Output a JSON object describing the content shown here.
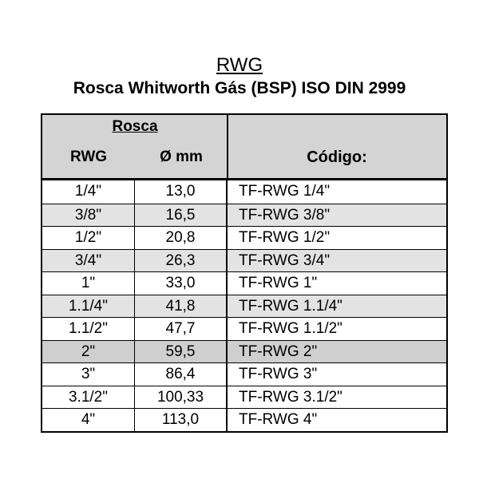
{
  "title": "RWG",
  "subtitle": "Rosca Whitworth Gás (BSP)  ISO DIN 2999",
  "table": {
    "group_header": "Rosca",
    "headers": {
      "rwg": "RWG",
      "mm": "Ø mm",
      "code": "Código:"
    },
    "rows": [
      {
        "rwg": "1/4\"",
        "mm": "13,0",
        "code": "TF-RWG 1/4\"",
        "shade": "none"
      },
      {
        "rwg": "3/8\"",
        "mm": "16,5",
        "code": "TF-RWG 3/8\"",
        "shade": "light"
      },
      {
        "rwg": "1/2\"",
        "mm": "20,8",
        "code": "TF-RWG 1/2\"",
        "shade": "none"
      },
      {
        "rwg": "3/4\"",
        "mm": "26,3",
        "code": "TF-RWG 3/4\"",
        "shade": "light"
      },
      {
        "rwg": "1\"",
        "mm": "33,0",
        "code": "TF-RWG 1\"",
        "shade": "none"
      },
      {
        "rwg": "1.1/4\"",
        "mm": "41,8",
        "code": "TF-RWG 1.1/4\"",
        "shade": "light"
      },
      {
        "rwg": "1.1/2\"",
        "mm": "47,7",
        "code": "TF-RWG 1.1/2\"",
        "shade": "none"
      },
      {
        "rwg": "2\"",
        "mm": "59,5",
        "code": "TF-RWG 2\"",
        "shade": "dark"
      },
      {
        "rwg": "3\"",
        "mm": "86,4",
        "code": "TF-RWG 3\"",
        "shade": "none"
      },
      {
        "rwg": "3.1/2\"",
        "mm": "100,33",
        "code": "TF-RWG 3.1/2\"",
        "shade": "none"
      },
      {
        "rwg": "4\"",
        "mm": "113,0",
        "code": "TF-RWG 4\"",
        "shade": "none"
      }
    ]
  },
  "colors": {
    "header_bg": "#d4d4d4",
    "row_shade_light": "#e3e3e3",
    "row_shade_dark": "#cfcfcf",
    "border": "#000000"
  }
}
